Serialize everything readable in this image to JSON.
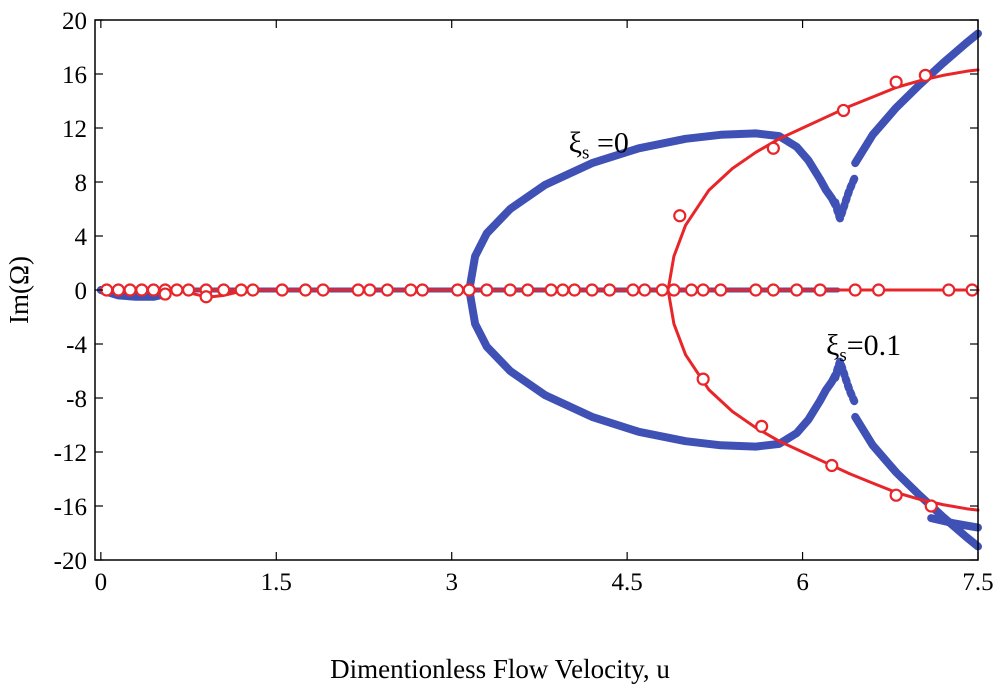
{
  "chart_data": {
    "type": "scatter",
    "title": "",
    "xlabel": "Dimentionless Flow Velocity, u",
    "ylabel": "Im(Ω)",
    "xlim": [
      -0.05,
      7.5
    ],
    "ylim": [
      -20,
      20
    ],
    "x_ticks": [
      {
        "value": 0,
        "label": "0"
      },
      {
        "value": 1.5,
        "label": "1.5"
      },
      {
        "value": 3,
        "label": "3"
      },
      {
        "value": 4.5,
        "label": "4.5"
      },
      {
        "value": 6,
        "label": "6"
      },
      {
        "value": 7.5,
        "label": "7.5"
      }
    ],
    "y_ticks": [
      {
        "value": 20,
        "label": "20"
      },
      {
        "value": 16,
        "label": "16"
      },
      {
        "value": 12,
        "label": "12"
      },
      {
        "value": 8,
        "label": "8"
      },
      {
        "value": 4,
        "label": "4"
      },
      {
        "value": 0,
        "label": "0"
      },
      {
        "value": -4,
        "label": "-4"
      },
      {
        "value": -8,
        "label": "-8"
      },
      {
        "value": -12,
        "label": "-12"
      },
      {
        "value": -16,
        "label": "-16"
      },
      {
        "value": -20,
        "label": "-20"
      }
    ],
    "annotations": [
      {
        "name": "xi-s-0",
        "symbol": "ξ",
        "sub": "s",
        "text": " =0",
        "x": 4.0,
        "y": 10.2
      },
      {
        "name": "xi-s-0-1",
        "symbol": "ξ",
        "sub": "s",
        "text": "=0.1",
        "x": 6.2,
        "y": -4.8
      }
    ],
    "series": [
      {
        "name": "xi_s = 0",
        "color": "#3f51b5",
        "marker": "dot",
        "branches": [
          {
            "name": "blue-zero-branch",
            "x": [
              0.0,
              0.5,
              1.0,
              1.5,
              2.0,
              2.5,
              3.0,
              3.15,
              6.3
            ],
            "y": [
              0,
              0,
              0,
              0,
              0,
              0,
              0,
              0,
              0
            ]
          },
          {
            "name": "blue-small-dip",
            "x": [
              0.0,
              0.15,
              0.3,
              0.45,
              0.55
            ],
            "y": [
              0,
              -0.4,
              -0.5,
              -0.5,
              -0.3
            ]
          },
          {
            "name": "blue-upper-loop",
            "x": [
              3.15,
              3.2,
              3.3,
              3.5,
              3.8,
              4.2,
              4.6,
              5.0,
              5.3,
              5.6,
              5.8,
              5.95,
              6.05,
              6.15,
              6.2,
              6.25,
              6.28
            ],
            "y": [
              0,
              2.5,
              4.2,
              6.0,
              7.8,
              9.4,
              10.5,
              11.2,
              11.5,
              11.6,
              11.4,
              10.6,
              9.6,
              8.2,
              7.4,
              6.8,
              6.3
            ]
          },
          {
            "name": "blue-lower-loop",
            "x": [
              3.15,
              3.2,
              3.3,
              3.5,
              3.8,
              4.2,
              4.6,
              5.0,
              5.3,
              5.6,
              5.8,
              5.95,
              6.05,
              6.15,
              6.2,
              6.25,
              6.28
            ],
            "y": [
              0,
              -2.5,
              -4.2,
              -6.0,
              -7.8,
              -9.4,
              -10.5,
              -11.2,
              -11.5,
              -11.6,
              -11.4,
              -10.6,
              -9.6,
              -8.2,
              -7.4,
              -6.8,
              -6.3
            ]
          },
          {
            "name": "blue-upper-cusp",
            "x": [
              6.28,
              6.3,
              6.32,
              6.34,
              6.37,
              6.4,
              6.45
            ],
            "y": [
              6.5,
              5.8,
              5.3,
              5.8,
              6.6,
              7.4,
              8.4
            ]
          },
          {
            "name": "blue-lower-cusp",
            "x": [
              6.28,
              6.3,
              6.32,
              6.34,
              6.37,
              6.4,
              6.45
            ],
            "y": [
              -6.5,
              -5.8,
              -5.3,
              -5.8,
              -6.6,
              -7.4,
              -8.4
            ]
          },
          {
            "name": "blue-upper-rise",
            "x": [
              6.45,
              6.6,
              6.8,
              7.0,
              7.2,
              7.4,
              7.5
            ],
            "y": [
              9.4,
              11.5,
              13.5,
              15.2,
              16.8,
              18.3,
              19.0
            ]
          },
          {
            "name": "blue-lower-drop",
            "x": [
              6.45,
              6.6,
              6.8,
              7.0,
              7.2,
              7.4,
              7.5
            ],
            "y": [
              -9.4,
              -11.5,
              -13.5,
              -15.2,
              -16.8,
              -18.3,
              -19.0
            ]
          },
          {
            "name": "blue-lower-tail",
            "x": [
              7.1,
              7.3,
              7.5
            ],
            "y": [
              -16.9,
              -17.3,
              -17.6
            ]
          }
        ]
      },
      {
        "name": "xi_s = 0.1",
        "color": "#e8262a",
        "marker": "circle",
        "branches": [
          {
            "name": "red-zero-line",
            "x": [
              0.0,
              7.5
            ],
            "y": [
              0,
              0
            ]
          },
          {
            "name": "red-small-dip",
            "x": [
              0.75,
              0.85,
              0.95,
              1.05,
              1.15
            ],
            "y": [
              -0.2,
              -0.4,
              -0.5,
              -0.4,
              -0.2
            ]
          },
          {
            "name": "red-upper-curve",
            "x": [
              4.85,
              4.9,
              5.0,
              5.2,
              5.4,
              5.6,
              5.8,
              6.0,
              6.2,
              6.4,
              6.6,
              6.8,
              7.0,
              7.2,
              7.4,
              7.5
            ],
            "y": [
              0,
              2.5,
              4.8,
              7.4,
              9.0,
              10.2,
              11.2,
              12.0,
              12.8,
              13.6,
              14.3,
              15.0,
              15.5,
              15.9,
              16.2,
              16.3
            ]
          },
          {
            "name": "red-lower-curve",
            "x": [
              4.85,
              4.9,
              5.0,
              5.2,
              5.4,
              5.6,
              5.8,
              6.0,
              6.2,
              6.4,
              6.6,
              6.8,
              7.0,
              7.2,
              7.4,
              7.5
            ],
            "y": [
              0,
              -2.5,
              -4.8,
              -7.4,
              -9.0,
              -10.2,
              -11.2,
              -12.0,
              -12.8,
              -13.6,
              -14.3,
              -15.0,
              -15.5,
              -15.9,
              -16.2,
              -16.3
            ]
          }
        ],
        "markers_x_zero": [
          0.05,
          0.15,
          0.25,
          0.35,
          0.45,
          0.55,
          0.65,
          0.75,
          0.9,
          1.05,
          1.2,
          1.3,
          1.55,
          1.75,
          1.9,
          2.2,
          2.3,
          2.45,
          2.65,
          2.75,
          3.05,
          3.15,
          3.3,
          3.5,
          3.65,
          3.85,
          3.95,
          4.05,
          4.2,
          4.35,
          4.55,
          4.65,
          4.8,
          4.9,
          5.05,
          5.15,
          5.3,
          5.6,
          5.75,
          5.95,
          6.15,
          6.45,
          6.65,
          7.25,
          7.45
        ],
        "markers_small_dip": [
          [
            0.55,
            -0.3
          ],
          [
            0.9,
            -0.5
          ]
        ],
        "markers_upper": [
          [
            4.95,
            5.5
          ],
          [
            5.75,
            10.5
          ],
          [
            6.35,
            13.3
          ],
          [
            6.8,
            15.4
          ],
          [
            7.05,
            15.9
          ]
        ],
        "markers_lower": [
          [
            5.15,
            -6.6
          ],
          [
            5.65,
            -10.1
          ],
          [
            6.25,
            -13.0
          ],
          [
            6.8,
            -15.2
          ],
          [
            7.1,
            -16.0
          ]
        ]
      }
    ]
  }
}
